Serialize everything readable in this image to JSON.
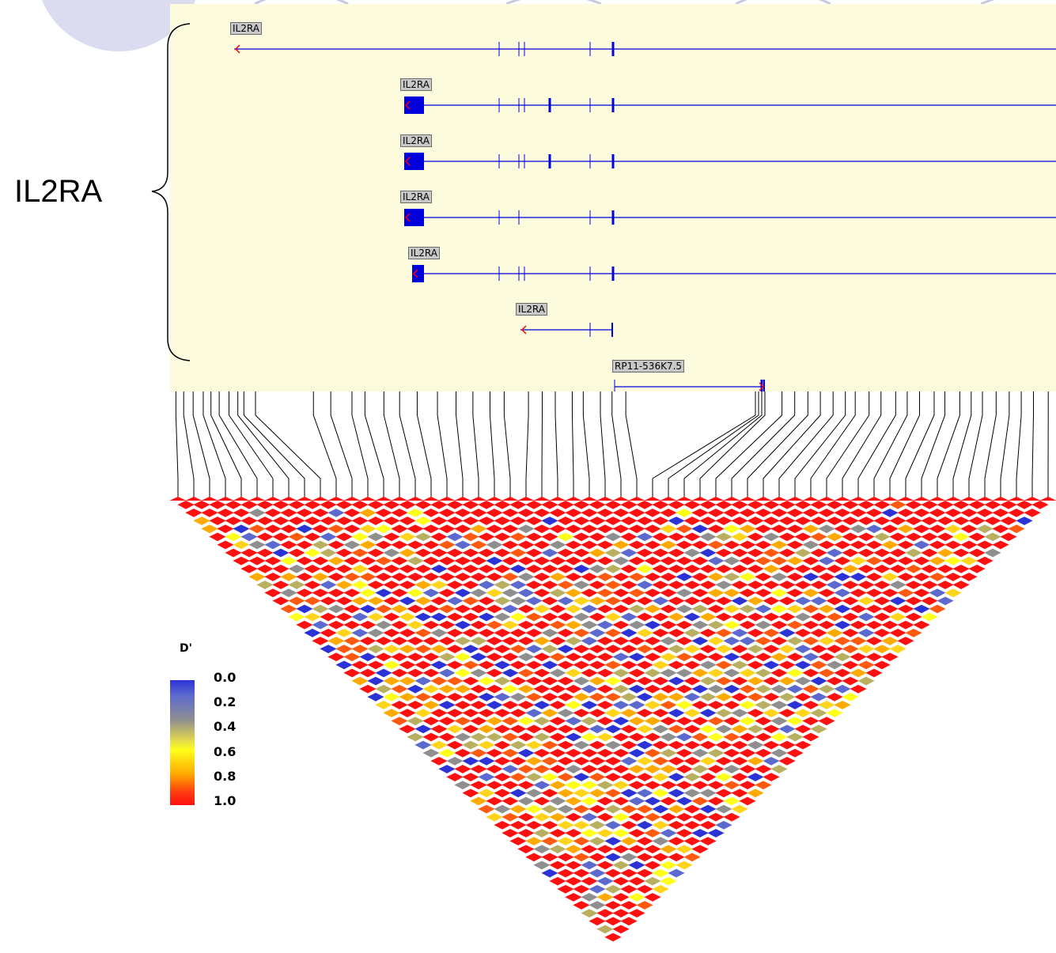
{
  "region_label": "IL2RA",
  "transcripts": [
    {
      "label": "IL2RA",
      "exons": 8
    },
    {
      "label": "IL2RA",
      "exons": 9
    },
    {
      "label": "IL2RA",
      "exons": 9
    },
    {
      "label": "IL2RA",
      "exons": 7
    },
    {
      "label": "IL2RA",
      "exons": 8
    },
    {
      "label": "IL2RA",
      "exons": 3
    },
    {
      "label": "RP11-536K7.5",
      "exons": 2
    }
  ],
  "legend": {
    "title": "D'",
    "ticks": [
      "0.0",
      "0.2",
      "0.4",
      "0.6",
      "0.8",
      "1.0"
    ]
  },
  "colors": {
    "gene_panel_bg": "#fcfbdd",
    "transcript_line": "#0000dd",
    "strand_arrow": "#ff0000",
    "label_bg": "#c8c8c8",
    "deco_circle": "#dcdcf0"
  },
  "ld_matrix": {
    "markers": 56,
    "color_scale": [
      "#2b33d6",
      "#8f8f8f",
      "#ffff1a",
      "#ffaa00",
      "#ff1010"
    ],
    "value_range": [
      0.0,
      1.0
    ]
  }
}
